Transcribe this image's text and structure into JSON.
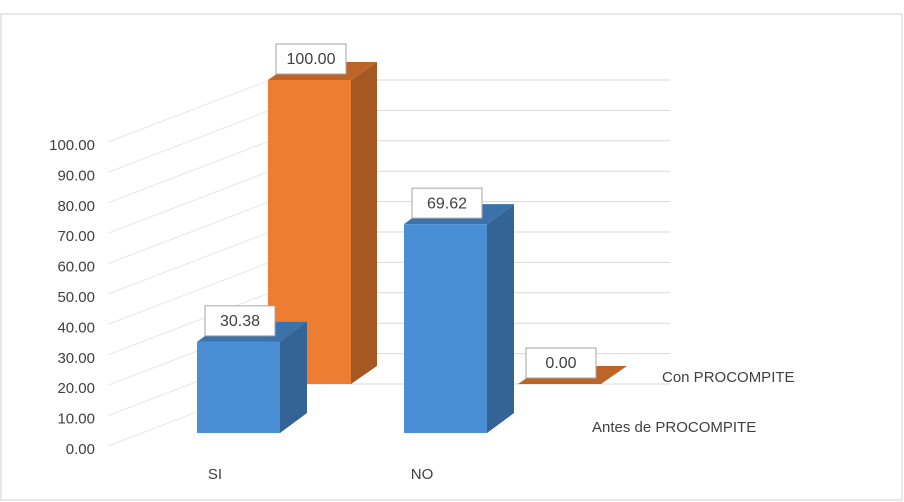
{
  "chart_data": {
    "type": "bar",
    "categories": [
      "SI",
      "NO"
    ],
    "series": [
      {
        "name": "Antes de PROCOMPITE",
        "color": "#4a8fd6",
        "values": [
          30.38,
          69.62
        ]
      },
      {
        "name": "Con PROCOMPITE",
        "color": "#ed7d31",
        "values": [
          100,
          0
        ],
        "value_labels": [
          "100.00",
          "0.00"
        ]
      }
    ],
    "ylim": [
      0,
      100
    ],
    "yticks": [
      {
        "value": 0,
        "label": "0.00"
      },
      {
        "value": 10,
        "label": "10.00"
      },
      {
        "value": 20,
        "label": "20.00"
      },
      {
        "value": 30,
        "label": "30.00"
      },
      {
        "value": 40,
        "label": "40.00"
      },
      {
        "value": 50,
        "label": "50.00"
      },
      {
        "value": 60,
        "label": "60.00"
      },
      {
        "value": 70,
        "label": "70.00"
      },
      {
        "value": 80,
        "label": "80.00"
      },
      {
        "value": 90,
        "label": "90.00"
      },
      {
        "value": 100,
        "label": "100.00"
      }
    ],
    "grid": true
  }
}
